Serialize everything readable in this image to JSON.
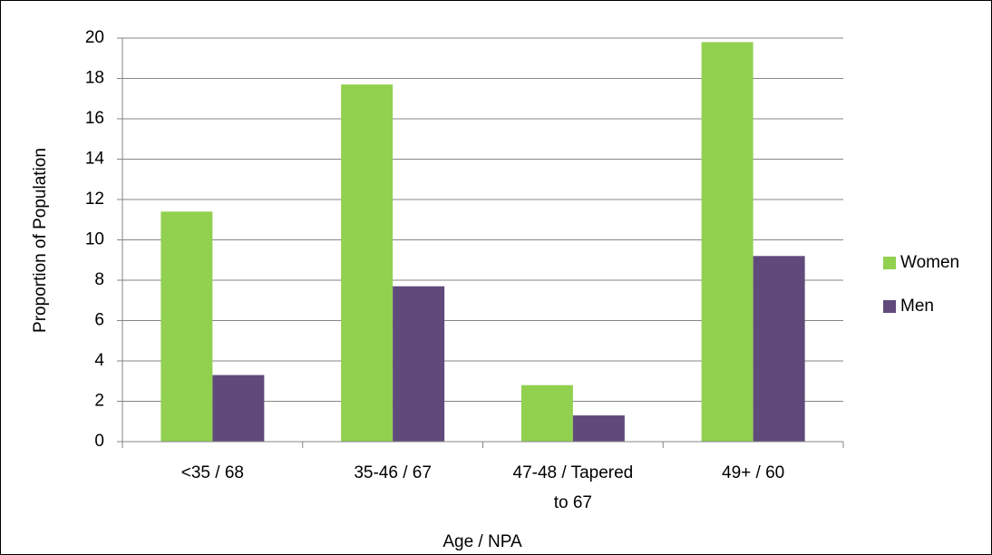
{
  "chart_data": {
    "type": "bar",
    "categories": [
      "<35 / 68",
      "35-46 / 67",
      "47-48 / Tapered to 67",
      "49+ / 60"
    ],
    "series": [
      {
        "name": "Women",
        "color": "#92d050",
        "values": [
          11.4,
          17.7,
          2.8,
          19.8
        ]
      },
      {
        "name": "Men",
        "color": "#604a7b",
        "values": [
          3.3,
          7.7,
          1.3,
          9.2
        ]
      }
    ],
    "ylim": [
      0,
      20
    ],
    "yticks": [
      0,
      2,
      4,
      6,
      8,
      10,
      12,
      14,
      16,
      18,
      20
    ],
    "grid": true,
    "legend": "right",
    "ylabel": "Proportion of Population",
    "xlabel": "Age / NPA"
  }
}
